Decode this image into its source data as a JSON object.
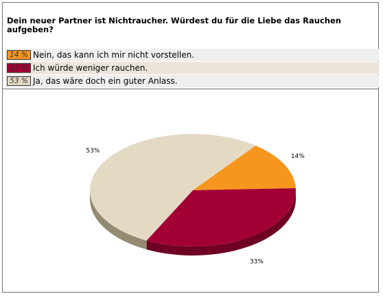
{
  "poll": {
    "question": "Dein neuer Partner ist Nichtraucher. Würdest du für die Liebe das Rauchen aufgeben?",
    "answers": [
      {
        "percent_label": "14 %",
        "text": "Nein, das kann ich mir nicht vorstellen.",
        "color": "#f6961f"
      },
      {
        "percent_label": "33 %",
        "text": "Ich würde weniger rauchen.",
        "color": "#a20035"
      },
      {
        "percent_label": "53 %",
        "text": "Ja, das wäre doch ein guter Anlass.",
        "color": "#e4dac4"
      }
    ]
  },
  "chart_data": {
    "type": "pie",
    "categories": [
      "Nein, das kann ich mir nicht vorstellen.",
      "Ich würde weniger rauchen.",
      "Ja, das wäre doch ein guter Anlass."
    ],
    "values": [
      14,
      33,
      53
    ],
    "data_labels": [
      "14%",
      "33%",
      "53%"
    ],
    "colors": [
      "#f6961f",
      "#a20035",
      "#e4dac4"
    ],
    "side_colors": [
      "#b46c12",
      "#6d0024",
      "#948a72"
    ],
    "style": "3d"
  }
}
